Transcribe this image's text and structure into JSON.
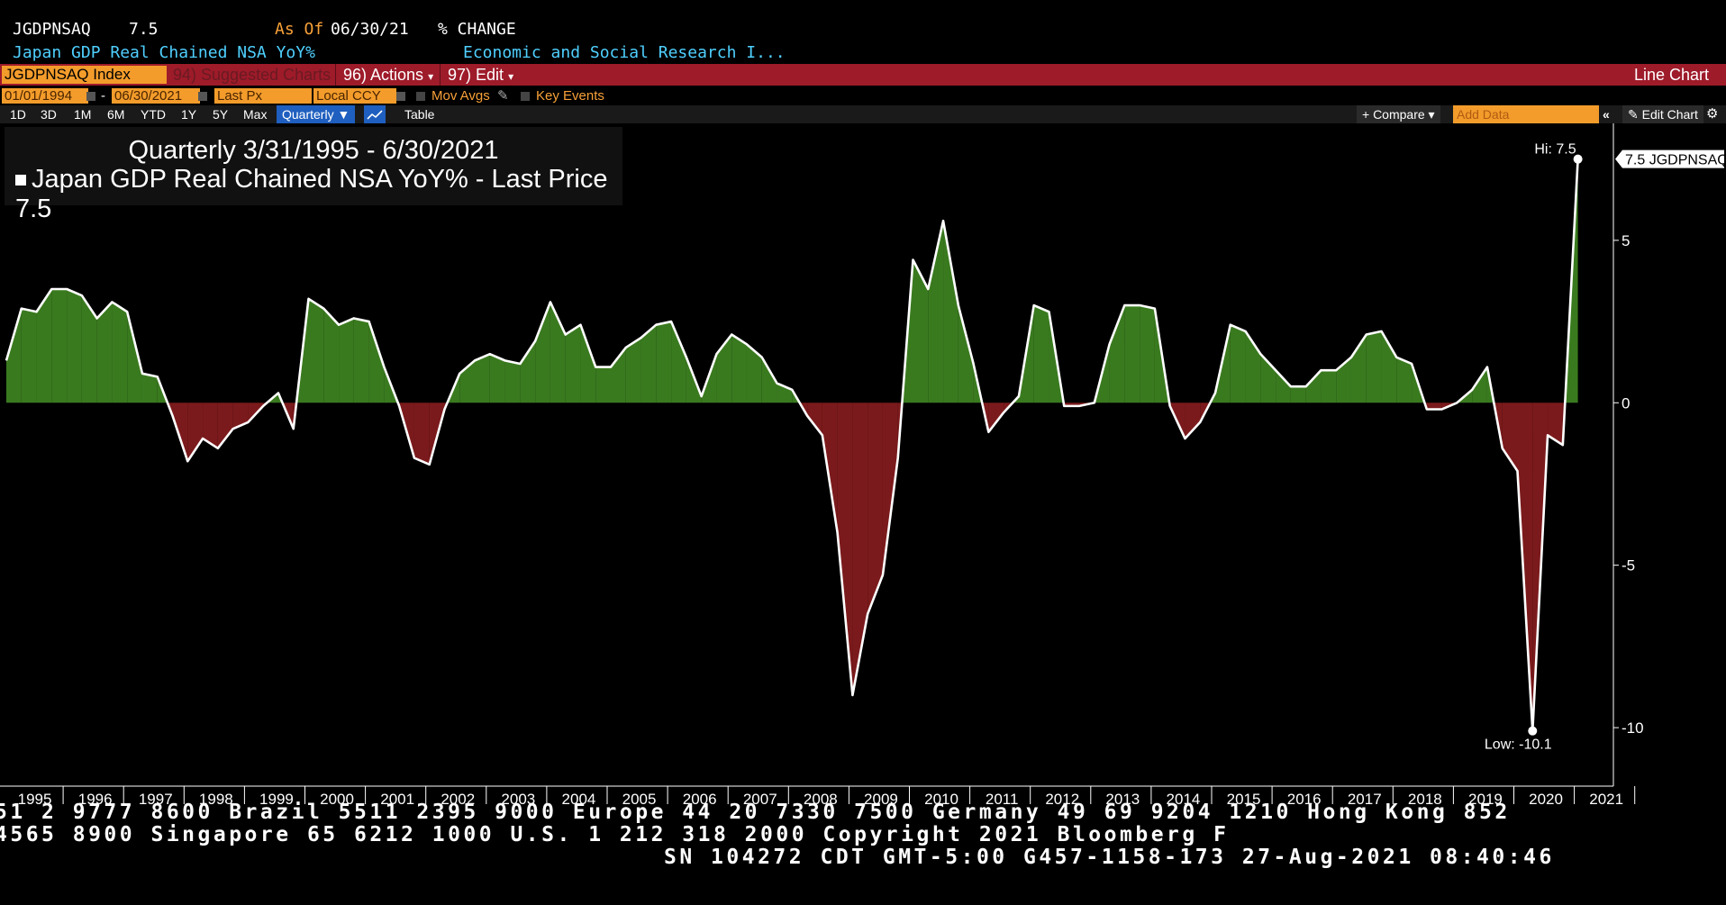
{
  "header": {
    "ticker": "JGDPNSAQ",
    "value": "7.5",
    "as_of_label": "As Of",
    "as_of_date": "06/30/21",
    "change_label": "% CHANGE",
    "description": "Japan GDP Real Chained NSA YoY%",
    "source": "Economic and Social Research I..."
  },
  "command_bar": {
    "security": "JGDPNSAQ Index",
    "suggested": "94) Suggested Charts",
    "actions": "96) Actions",
    "actions_arrow": "▾",
    "edit": "97) Edit",
    "edit_arrow": "▾",
    "chart_type": "Line Chart"
  },
  "controls": {
    "start_date": "01/01/1994",
    "dash": "-",
    "end_date": "06/30/2021",
    "price_field": "Last Px",
    "currency": "Local CCY",
    "mov_avgs": "Mov Avgs",
    "key_events": "Key Events"
  },
  "toolbar": {
    "ranges": [
      "1D",
      "3D",
      "1M",
      "6M",
      "YTD",
      "1Y",
      "5Y",
      "Max"
    ],
    "frequency": "Quarterly ▼",
    "table": "Table",
    "compare": "+ Compare ▾",
    "add_data_placeholder": "Add Data",
    "collapse": "«",
    "edit_chart": "Edit Chart",
    "settings_icon": "gear-icon"
  },
  "legend": {
    "period": "Quarterly 3/31/1995 - 6/30/2021",
    "series": "Japan GDP Real Chained NSA YoY% - Last Price 7.5"
  },
  "chart_data": {
    "type": "area",
    "series_name": "Japan GDP Real Chained NSA YoY%",
    "x_labels": [
      "1995",
      "1996",
      "1997",
      "1998",
      "1999",
      "2000",
      "2001",
      "2002",
      "2003",
      "2004",
      "2005",
      "2006",
      "2007",
      "2008",
      "2009",
      "2010",
      "2011",
      "2012",
      "2013",
      "2014",
      "2015",
      "2016",
      "2017",
      "2018",
      "2019",
      "2020",
      "2021"
    ],
    "y_ticks": [
      5,
      0,
      -5,
      -10
    ],
    "ylim": [
      -11.8,
      8.6
    ],
    "start_year": 1995.0,
    "values": [
      1.3,
      2.9,
      2.8,
      3.5,
      3.5,
      3.3,
      2.6,
      3.1,
      2.8,
      0.9,
      0.8,
      -0.4,
      -1.8,
      -1.1,
      -1.4,
      -0.8,
      -0.6,
      -0.1,
      0.3,
      -0.8,
      3.2,
      2.9,
      2.4,
      2.6,
      2.5,
      1.1,
      -0.1,
      -1.7,
      -1.9,
      -0.2,
      0.9,
      1.3,
      1.5,
      1.3,
      1.2,
      1.9,
      3.1,
      2.1,
      2.4,
      1.1,
      1.1,
      1.7,
      2.0,
      2.4,
      2.5,
      1.4,
      0.2,
      1.5,
      2.1,
      1.8,
      1.4,
      0.6,
      0.4,
      -0.4,
      -1.0,
      -4.0,
      -9.0,
      -6.5,
      -5.3,
      -1.7,
      4.4,
      3.5,
      5.6,
      3.0,
      1.2,
      -0.9,
      -0.3,
      0.2,
      3.0,
      2.8,
      -0.1,
      -0.1,
      0.0,
      1.8,
      3.0,
      3.0,
      2.9,
      -0.1,
      -1.1,
      -0.6,
      0.3,
      2.4,
      2.2,
      1.5,
      1.0,
      0.5,
      0.5,
      1.0,
      1.0,
      1.4,
      2.1,
      2.2,
      1.4,
      1.2,
      -0.2,
      -0.2,
      0.0,
      0.4,
      1.1,
      -1.4,
      -2.1,
      -10.1,
      -1.0,
      -1.3,
      7.5
    ],
    "high_label": "Hi: 7.5",
    "low_label": "Low: -10.1",
    "last_tag": "7.5 JGDPNSAQ",
    "positive_color": "#3a7a1f",
    "negative_color": "#7b1a1c",
    "line_color": "#ffffff"
  },
  "footer": {
    "line1": "51 2 9777 8600 Brazil 5511 2395 9000 Europe 44 20 7330 7500 Germany 49 69 9204 1210 Hong Kong 852",
    "line2": " 4565 8900       Singapore 65 6212 1000       U.S. 1 212 318 2000        Copyright 2021 Bloomberg F",
    "line3": "SN 104272 CDT  GMT-5:00 G457-1158-173 27-Aug-2021 08:40:46"
  }
}
